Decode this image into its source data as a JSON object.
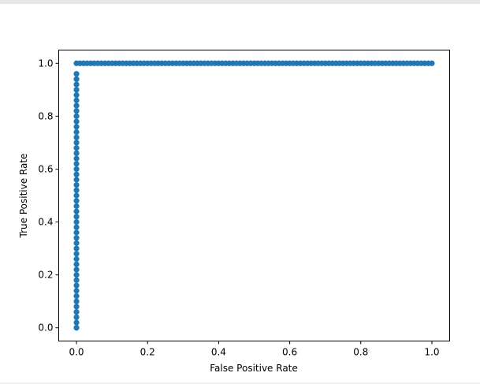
{
  "chart_data": {
    "type": "scatter",
    "title": "",
    "xlabel": "False Positive Rate",
    "ylabel": "True Positive Rate",
    "xlim": [
      -0.05,
      1.05
    ],
    "ylim": [
      -0.05,
      1.05
    ],
    "xticks": [
      "0.0",
      "0.2",
      "0.4",
      "0.6",
      "0.8",
      "1.0"
    ],
    "yticks": [
      "0.0",
      "0.2",
      "0.4",
      "0.6",
      "0.8",
      "1.0"
    ],
    "grid": false,
    "color": "#1f77b4",
    "points": [
      [
        0,
        0
      ],
      [
        0,
        0.02
      ],
      [
        0,
        0.04
      ],
      [
        0,
        0.06
      ],
      [
        0,
        0.08
      ],
      [
        0,
        0.1
      ],
      [
        0,
        0.12
      ],
      [
        0,
        0.14
      ],
      [
        0,
        0.16
      ],
      [
        0,
        0.18
      ],
      [
        0,
        0.2
      ],
      [
        0,
        0.22
      ],
      [
        0,
        0.24
      ],
      [
        0,
        0.26
      ],
      [
        0,
        0.28
      ],
      [
        0,
        0.3
      ],
      [
        0,
        0.32
      ],
      [
        0,
        0.34
      ],
      [
        0,
        0.36
      ],
      [
        0,
        0.38
      ],
      [
        0,
        0.4
      ],
      [
        0,
        0.42
      ],
      [
        0,
        0.44
      ],
      [
        0,
        0.46
      ],
      [
        0,
        0.48
      ],
      [
        0,
        0.5
      ],
      [
        0,
        0.52
      ],
      [
        0,
        0.54
      ],
      [
        0,
        0.56
      ],
      [
        0,
        0.58
      ],
      [
        0,
        0.6
      ],
      [
        0,
        0.62
      ],
      [
        0,
        0.64
      ],
      [
        0,
        0.66
      ],
      [
        0,
        0.68
      ],
      [
        0,
        0.7
      ],
      [
        0,
        0.72
      ],
      [
        0,
        0.74
      ],
      [
        0,
        0.76
      ],
      [
        0,
        0.78
      ],
      [
        0,
        0.8
      ],
      [
        0,
        0.82
      ],
      [
        0,
        0.84
      ],
      [
        0,
        0.86
      ],
      [
        0,
        0.88
      ],
      [
        0,
        0.9
      ],
      [
        0,
        0.92
      ],
      [
        0,
        0.94
      ],
      [
        0,
        0.96
      ],
      [
        0,
        1
      ],
      [
        0.01,
        1
      ],
      [
        0.02,
        1
      ],
      [
        0.03,
        1
      ],
      [
        0.04,
        1
      ],
      [
        0.05,
        1
      ],
      [
        0.06,
        1
      ],
      [
        0.07,
        1
      ],
      [
        0.08,
        1
      ],
      [
        0.09,
        1
      ],
      [
        0.1,
        1
      ],
      [
        0.11,
        1
      ],
      [
        0.12,
        1
      ],
      [
        0.13,
        1
      ],
      [
        0.14,
        1
      ],
      [
        0.15,
        1
      ],
      [
        0.16,
        1
      ],
      [
        0.17,
        1
      ],
      [
        0.18,
        1
      ],
      [
        0.19,
        1
      ],
      [
        0.2,
        1
      ],
      [
        0.21,
        1
      ],
      [
        0.22,
        1
      ],
      [
        0.23,
        1
      ],
      [
        0.24,
        1
      ],
      [
        0.25,
        1
      ],
      [
        0.26,
        1
      ],
      [
        0.27,
        1
      ],
      [
        0.28,
        1
      ],
      [
        0.29,
        1
      ],
      [
        0.3,
        1
      ],
      [
        0.31,
        1
      ],
      [
        0.32,
        1
      ],
      [
        0.33,
        1
      ],
      [
        0.34,
        1
      ],
      [
        0.35,
        1
      ],
      [
        0.36,
        1
      ],
      [
        0.37,
        1
      ],
      [
        0.38,
        1
      ],
      [
        0.39,
        1
      ],
      [
        0.4,
        1
      ],
      [
        0.41,
        1
      ],
      [
        0.42,
        1
      ],
      [
        0.43,
        1
      ],
      [
        0.44,
        1
      ],
      [
        0.45,
        1
      ],
      [
        0.46,
        1
      ],
      [
        0.47,
        1
      ],
      [
        0.48,
        1
      ],
      [
        0.49,
        1
      ],
      [
        0.5,
        1
      ],
      [
        0.51,
        1
      ],
      [
        0.52,
        1
      ],
      [
        0.53,
        1
      ],
      [
        0.54,
        1
      ],
      [
        0.55,
        1
      ],
      [
        0.56,
        1
      ],
      [
        0.57,
        1
      ],
      [
        0.58,
        1
      ],
      [
        0.59,
        1
      ],
      [
        0.6,
        1
      ],
      [
        0.61,
        1
      ],
      [
        0.62,
        1
      ],
      [
        0.63,
        1
      ],
      [
        0.64,
        1
      ],
      [
        0.65,
        1
      ],
      [
        0.66,
        1
      ],
      [
        0.67,
        1
      ],
      [
        0.68,
        1
      ],
      [
        0.69,
        1
      ],
      [
        0.7,
        1
      ],
      [
        0.71,
        1
      ],
      [
        0.72,
        1
      ],
      [
        0.73,
        1
      ],
      [
        0.74,
        1
      ],
      [
        0.75,
        1
      ],
      [
        0.76,
        1
      ],
      [
        0.77,
        1
      ],
      [
        0.78,
        1
      ],
      [
        0.79,
        1
      ],
      [
        0.8,
        1
      ],
      [
        0.81,
        1
      ],
      [
        0.82,
        1
      ],
      [
        0.83,
        1
      ],
      [
        0.84,
        1
      ],
      [
        0.85,
        1
      ],
      [
        0.86,
        1
      ],
      [
        0.87,
        1
      ],
      [
        0.88,
        1
      ],
      [
        0.89,
        1
      ],
      [
        0.9,
        1
      ],
      [
        0.91,
        1
      ],
      [
        0.92,
        1
      ],
      [
        0.93,
        1
      ],
      [
        0.94,
        1
      ],
      [
        0.95,
        1
      ],
      [
        0.96,
        1
      ],
      [
        0.97,
        1
      ],
      [
        0.98,
        1
      ],
      [
        0.99,
        1
      ],
      [
        1,
        1
      ]
    ]
  }
}
